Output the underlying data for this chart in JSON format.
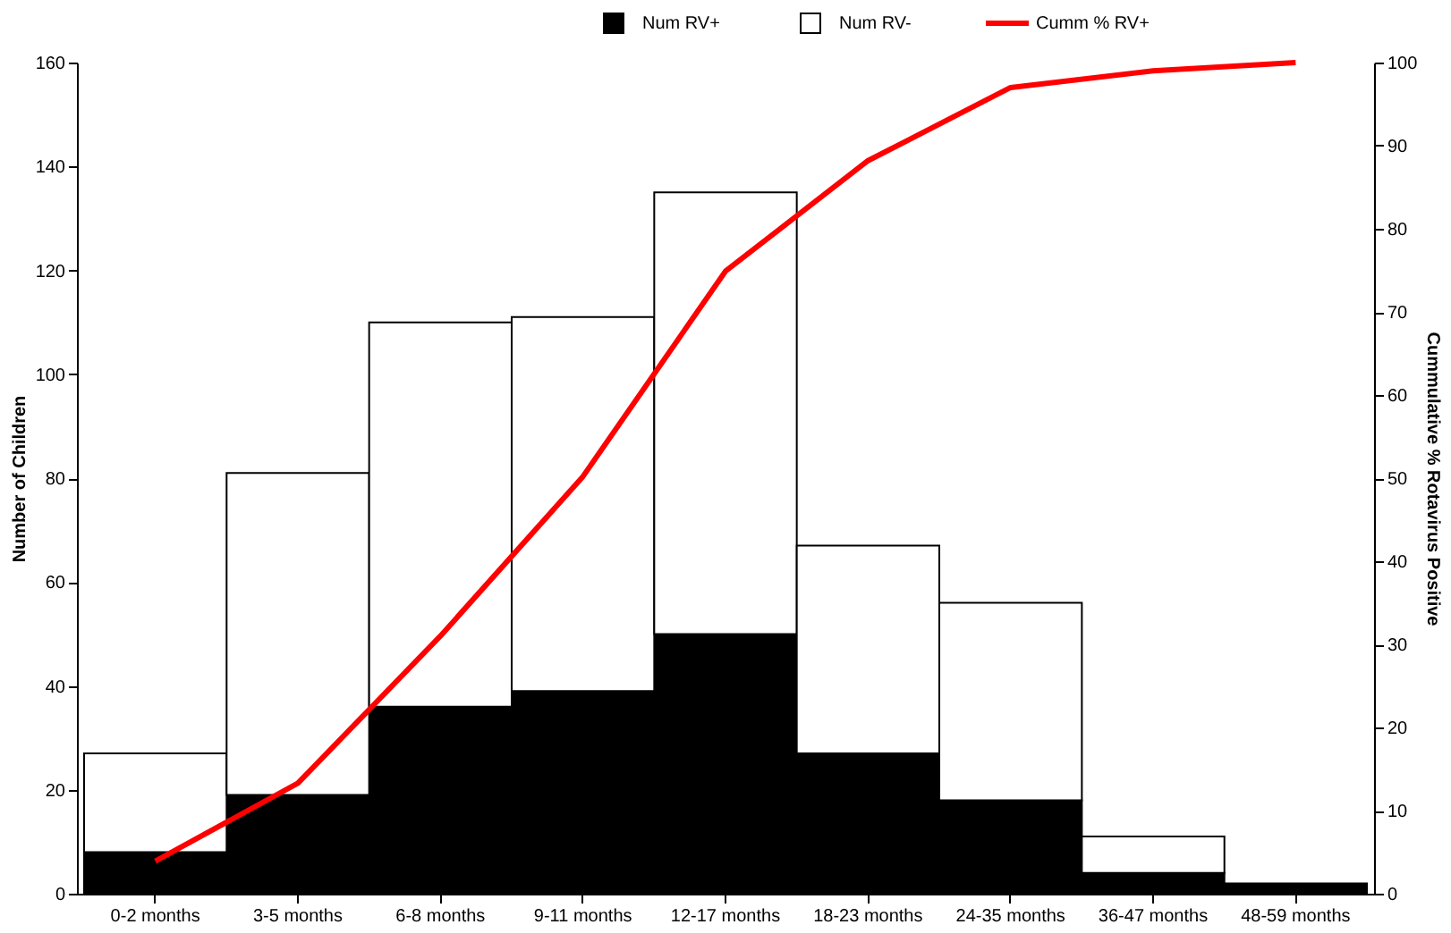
{
  "chart_data": {
    "type": "bar",
    "stacked": true,
    "categories": [
      "0-2 months",
      "3-5 months",
      "6-8 months",
      "9-11 months",
      "12-17 months",
      "18-23 months",
      "24-35 months",
      "36-47 months",
      "48-59 months"
    ],
    "series": [
      {
        "name": "Num RV+",
        "color": "#000000",
        "values": [
          8,
          19,
          36,
          39,
          50,
          27,
          18,
          4,
          2
        ]
      },
      {
        "name": "Num RV-",
        "color": "#ffffff",
        "values": [
          19,
          62,
          74,
          72,
          85,
          40,
          38,
          7,
          0
        ]
      },
      {
        "name": "Cumm % RV+",
        "type": "line",
        "axis": "y2",
        "color": "#ff0000",
        "values": [
          3.9,
          13.3,
          31.0,
          50.2,
          74.9,
          88.2,
          97.0,
          99.0,
          100
        ]
      }
    ],
    "ylabel": "Number of Children",
    "y2label": "Cummulative % Rotavirus Positive",
    "ylim": [
      0,
      160
    ],
    "yticks": [
      0,
      20,
      40,
      60,
      80,
      100,
      120,
      140,
      160
    ],
    "y2lim": [
      0,
      100
    ],
    "y2ticks": [
      0,
      10,
      20,
      30,
      40,
      50,
      60,
      70,
      80,
      90,
      100
    ],
    "grid": false,
    "legend": "top",
    "marker": "none",
    "line_style": "solid"
  }
}
